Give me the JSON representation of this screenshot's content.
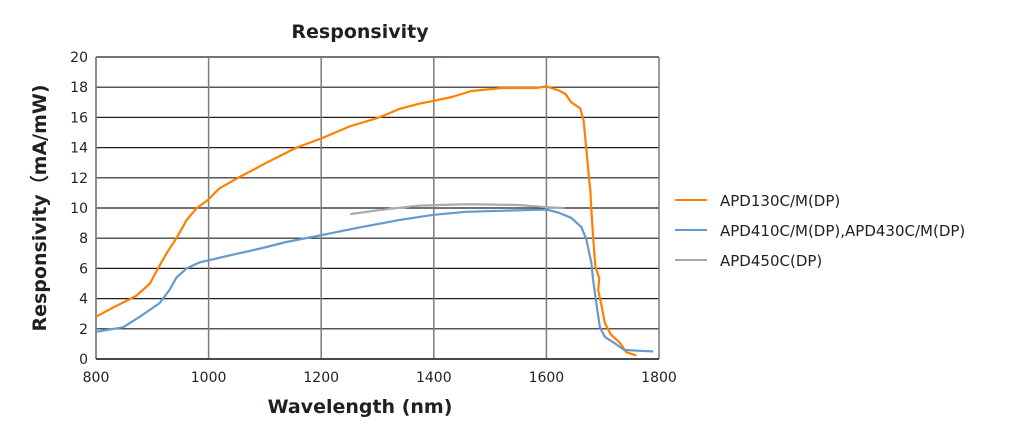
{
  "chart_data": {
    "type": "line",
    "title": "Responsivity",
    "xlabel": "Wavelength (nm)",
    "ylabel": "Responsivity（mA/mW)",
    "xlim": [
      800,
      1800
    ],
    "ylim": [
      0,
      20
    ],
    "xticks": [
      800,
      1000,
      1200,
      1400,
      1600,
      1800
    ],
    "yticks": [
      0,
      2,
      4,
      6,
      8,
      10,
      12,
      14,
      16,
      18,
      20
    ],
    "grid": true,
    "legend_position": "right",
    "series": [
      {
        "name": "APD130C/M(DP)",
        "color": "#ff8000",
        "x": [
          800,
          830,
          872,
          896,
          910,
          927,
          943,
          961,
          979,
          998,
          1019,
          1055,
          1103,
          1156,
          1200,
          1250,
          1303,
          1338,
          1373,
          1400,
          1432,
          1467,
          1520,
          1581,
          1600,
          1621,
          1634,
          1644,
          1660,
          1666,
          1671,
          1676,
          1678,
          1680,
          1683,
          1687,
          1694,
          1692,
          1697,
          1704,
          1715,
          1731,
          1742,
          1758
        ],
        "y": [
          2.8,
          3.4,
          4.2,
          5.0,
          6.0,
          7.1,
          8.0,
          9.2,
          10.0,
          10.5,
          11.3,
          12.05,
          13.0,
          14.0,
          14.6,
          15.4,
          16.0,
          16.55,
          16.9,
          17.1,
          17.35,
          17.75,
          17.95,
          17.95,
          18.05,
          17.8,
          17.55,
          17.0,
          16.6,
          15.8,
          13.85,
          11.85,
          11.2,
          9.85,
          8.1,
          6.1,
          5.35,
          4.55,
          3.7,
          2.35,
          1.6,
          1.05,
          0.45,
          0.25
        ]
      },
      {
        "name": "APD410C/M(DP),APD430C/M(DP)",
        "color": "#6699cc",
        "x": [
          800,
          848,
          878,
          913,
          931,
          943,
          961,
          984,
          1019,
          1042,
          1096,
          1138,
          1200,
          1267,
          1338,
          1373,
          1400,
          1457,
          1550,
          1600,
          1621,
          1644,
          1662,
          1671,
          1680,
          1683,
          1688,
          1695,
          1704,
          1721,
          1738,
          1761,
          1788
        ],
        "y": [
          1.8,
          2.1,
          2.8,
          3.7,
          4.6,
          5.4,
          6.0,
          6.4,
          6.7,
          6.9,
          7.35,
          7.75,
          8.2,
          8.7,
          9.2,
          9.4,
          9.55,
          9.75,
          9.85,
          9.9,
          9.7,
          9.35,
          8.75,
          7.9,
          6.35,
          5.25,
          3.9,
          2.1,
          1.45,
          1.05,
          0.6,
          0.55,
          0.5
        ]
      },
      {
        "name": "APD450C(DP)",
        "color": "#aaaaaa",
        "x": [
          1253,
          1300,
          1373,
          1409,
          1462,
          1550,
          1600,
          1630
        ],
        "y": [
          9.6,
          9.85,
          10.15,
          10.2,
          10.25,
          10.2,
          10.05,
          10.0
        ]
      }
    ]
  }
}
